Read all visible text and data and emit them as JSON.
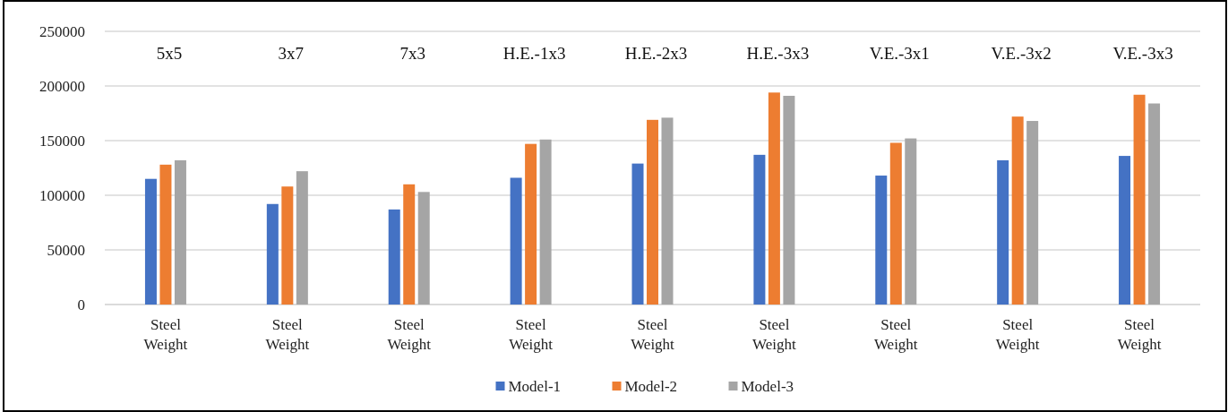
{
  "chart_data": {
    "type": "bar",
    "categories": [
      "Steel Weight",
      "Steel Weight",
      "Steel Weight",
      "Steel Weight",
      "Steel Weight",
      "Steel Weight",
      "Steel Weight",
      "Steel Weight",
      "Steel Weight"
    ],
    "annotations": [
      "5x5",
      "3x7",
      "7x3",
      "H.E.-1x3",
      "H.E.-2x3",
      "H.E.-3x3",
      "V.E.-3x1",
      "V.E.-3x2",
      "V.E.-3x3"
    ],
    "series": [
      {
        "name": "Model-1",
        "color": "#4472c4",
        "values": [
          115000,
          92000,
          87000,
          116000,
          129000,
          137000,
          118000,
          132000,
          136000
        ]
      },
      {
        "name": "Model-2",
        "color": "#ed7d31",
        "values": [
          128000,
          108000,
          110000,
          147000,
          169000,
          194000,
          148000,
          172000,
          192000
        ]
      },
      {
        "name": "Model-3",
        "color": "#a5a5a5",
        "values": [
          132000,
          122000,
          103000,
          151000,
          171000,
          191000,
          152000,
          168000,
          184000
        ]
      }
    ],
    "ylim": [
      0,
      250000
    ],
    "yticks": [
      0,
      50000,
      100000,
      150000,
      200000,
      250000
    ],
    "grid": "y",
    "legend": "bottom"
  }
}
